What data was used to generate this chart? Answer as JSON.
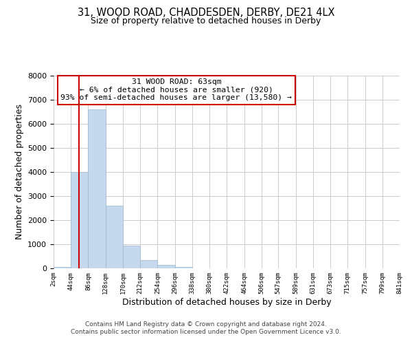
{
  "title": "31, WOOD ROAD, CHADDESDEN, DERBY, DE21 4LX",
  "subtitle": "Size of property relative to detached houses in Derby",
  "xlabel": "Distribution of detached houses by size in Derby",
  "ylabel": "Number of detached properties",
  "footer_lines": [
    "Contains HM Land Registry data © Crown copyright and database right 2024.",
    "Contains public sector information licensed under the Open Government Licence v3.0."
  ],
  "bin_edges": [
    2,
    44,
    86,
    128,
    170,
    212,
    254,
    296,
    338,
    380,
    422,
    464,
    506,
    547,
    589,
    631,
    673,
    715,
    757,
    799,
    841
  ],
  "bin_labels": [
    "2sqm",
    "44sqm",
    "86sqm",
    "128sqm",
    "170sqm",
    "212sqm",
    "254sqm",
    "296sqm",
    "338sqm",
    "380sqm",
    "422sqm",
    "464sqm",
    "506sqm",
    "547sqm",
    "589sqm",
    "631sqm",
    "673sqm",
    "715sqm",
    "757sqm",
    "799sqm",
    "841sqm"
  ],
  "bar_heights": [
    50,
    4000,
    6600,
    2600,
    950,
    330,
    130,
    50,
    0,
    0,
    0,
    0,
    0,
    0,
    0,
    0,
    0,
    0,
    0,
    0
  ],
  "bar_color": "#c5d8ed",
  "bar_edge_color": "#9ab8d0",
  "property_line_x": 63,
  "property_line_color": "#cc0000",
  "ylim": [
    0,
    8000
  ],
  "yticks": [
    0,
    1000,
    2000,
    3000,
    4000,
    5000,
    6000,
    7000,
    8000
  ],
  "annotation_text": "31 WOOD ROAD: 63sqm\n← 6% of detached houses are smaller (920)\n93% of semi-detached houses are larger (13,580) →",
  "annotation_box_color": "#ffffff",
  "annotation_box_edge_color": "#cc0000",
  "background_color": "#ffffff",
  "grid_color": "#cccccc"
}
